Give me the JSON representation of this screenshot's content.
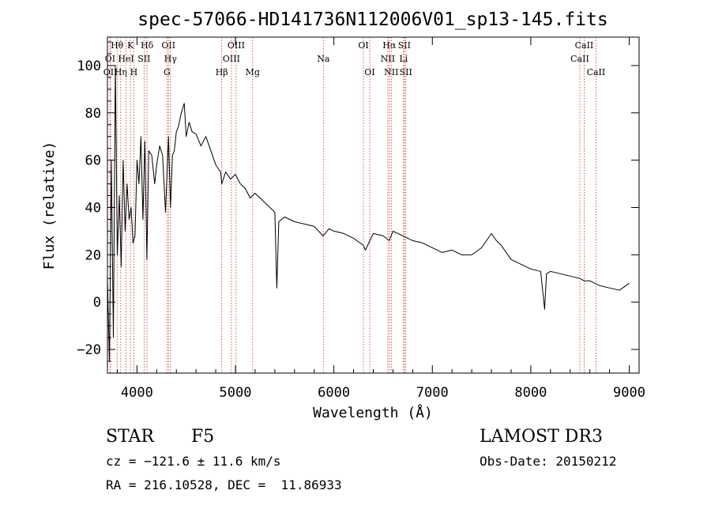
{
  "chart_data": {
    "type": "line",
    "title": "spec-57066-HD141736N112006V01_sp13-145.fits",
    "xlabel": "Wavelength (Å)",
    "ylabel": "Flux (relative)",
    "xlim": [
      3700,
      9100
    ],
    "ylim": [
      -30,
      112
    ],
    "xticks": [
      4000,
      5000,
      6000,
      7000,
      8000,
      9000
    ],
    "yticks": [
      -20,
      0,
      20,
      40,
      60,
      80,
      100
    ],
    "series": [
      {
        "name": "spectrum",
        "x": [
          3700,
          3720,
          3740,
          3760,
          3780,
          3800,
          3820,
          3840,
          3860,
          3880,
          3900,
          3920,
          3940,
          3960,
          3980,
          4000,
          4020,
          4040,
          4060,
          4080,
          4100,
          4120,
          4150,
          4180,
          4200,
          4230,
          4260,
          4290,
          4320,
          4340,
          4360,
          4380,
          4400,
          4420,
          4450,
          4480,
          4500,
          4530,
          4560,
          4600,
          4650,
          4700,
          4750,
          4800,
          4850,
          4861,
          4900,
          4950,
          5000,
          5050,
          5100,
          5150,
          5200,
          5300,
          5400,
          5420,
          5440,
          5500,
          5600,
          5700,
          5800,
          5890,
          5950,
          6000,
          6100,
          6200,
          6300,
          6320,
          6400,
          6500,
          6562,
          6600,
          6700,
          6800,
          6900,
          7000,
          7100,
          7200,
          7300,
          7400,
          7500,
          7600,
          7650,
          7700,
          7800,
          7900,
          8000,
          8100,
          8140,
          8160,
          8200,
          8300,
          8400,
          8500,
          8542,
          8600,
          8700,
          8800,
          8900,
          9000
        ],
        "values": [
          10,
          -25,
          60,
          -15,
          100,
          20,
          45,
          15,
          60,
          30,
          50,
          35,
          40,
          25,
          28,
          60,
          50,
          70,
          35,
          68,
          18,
          64,
          62,
          50,
          58,
          66,
          62,
          38,
          70,
          40,
          62,
          64,
          72,
          74,
          80,
          84,
          70,
          76,
          72,
          71,
          66,
          70,
          64,
          58,
          55,
          50,
          55,
          52,
          54,
          50,
          48,
          44,
          46,
          42,
          38,
          6,
          34,
          36,
          34,
          33,
          32,
          28,
          31,
          30,
          29,
          27,
          24,
          22,
          29,
          28,
          26,
          30,
          28,
          26,
          25,
          23,
          21,
          22,
          20,
          20,
          23,
          29,
          26,
          24,
          18,
          16,
          14,
          13,
          -3,
          12,
          13,
          12,
          11,
          10,
          9,
          9,
          7,
          6,
          5,
          8
        ]
      }
    ],
    "lines": [
      {
        "label": "Hθ",
        "x": 3798,
        "row": 0
      },
      {
        "label": "K",
        "x": 3934,
        "row": 0
      },
      {
        "label": "Hδ",
        "x": 4102,
        "row": 0
      },
      {
        "label": "OII",
        "x": 4320,
        "row": 0
      },
      {
        "label": "OIII",
        "x": 5007,
        "row": 0
      },
      {
        "label": "OI",
        "x": 6300,
        "row": 0
      },
      {
        "label": "Hα",
        "x": 6563,
        "row": 0
      },
      {
        "label": "SII",
        "x": 6716,
        "row": 0
      },
      {
        "label": "CaII",
        "x": 8542,
        "row": 0
      },
      {
        "label": "OI",
        "x": 3727,
        "row": 1
      },
      {
        "label": "HeI",
        "x": 3889,
        "row": 1
      },
      {
        "label": "SII",
        "x": 4072,
        "row": 1
      },
      {
        "label": "Hγ",
        "x": 4340,
        "row": 1
      },
      {
        "label": "OIII",
        "x": 4959,
        "row": 1
      },
      {
        "label": "Na",
        "x": 5893,
        "row": 1
      },
      {
        "label": "NII",
        "x": 6548,
        "row": 1
      },
      {
        "label": "Li",
        "x": 6708,
        "row": 1
      },
      {
        "label": "CaII",
        "x": 8498,
        "row": 1
      },
      {
        "label": "OII",
        "x": 3729,
        "row": 2
      },
      {
        "label": "Hη",
        "x": 3835,
        "row": 2
      },
      {
        "label": "H",
        "x": 3968,
        "row": 2
      },
      {
        "label": "G",
        "x": 4305,
        "row": 2
      },
      {
        "label": "Hβ",
        "x": 4861,
        "row": 2
      },
      {
        "label": "Mg",
        "x": 5175,
        "row": 2
      },
      {
        "label": "OI",
        "x": 6364,
        "row": 2
      },
      {
        "label": "NII",
        "x": 6583,
        "row": 2
      },
      {
        "label": "SII",
        "x": 6731,
        "row": 2
      },
      {
        "label": "CaII",
        "x": 8662,
        "row": 2
      }
    ]
  },
  "info": {
    "object_class": "STAR",
    "subclass": "F5",
    "survey": "LAMOST DR3",
    "cz": "cz = −121.6 ± 11.6 km/s",
    "obs_date": "Obs-Date: 20150212",
    "radec": "RA = 216.10528, DEC =  11.86933"
  },
  "colors": {
    "spectrum": "#000000",
    "lines": "#c0392b",
    "axes": "#000000"
  }
}
